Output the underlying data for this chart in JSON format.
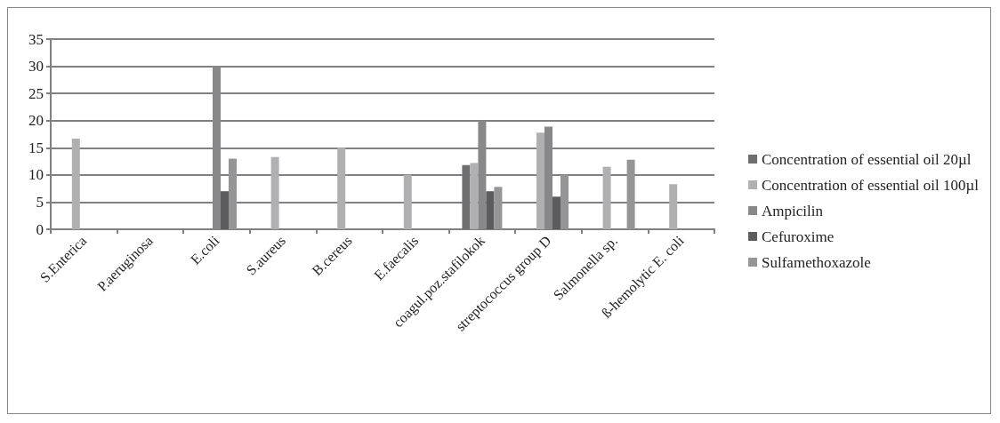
{
  "chart_data": {
    "type": "bar",
    "categories": [
      "S.Enterica",
      "P.aeruginosa",
      "E.coli",
      "S.aureus",
      "B.cereus",
      "E.faecalis",
      "coagul.poz.stafilokok",
      "streptococcus group D",
      "Salmonella sp.",
      "ß-hemolytic E. coli"
    ],
    "series": [
      {
        "name": "Concentration of essential oil 20µl",
        "color": "#6e6e70",
        "values": [
          null,
          null,
          null,
          null,
          null,
          null,
          11.8,
          null,
          null,
          null
        ]
      },
      {
        "name": "Concentration of essential oil 100µl",
        "color": "#b0b0b2",
        "values": [
          16.7,
          null,
          null,
          13.3,
          15,
          10,
          12.2,
          17.8,
          11.5,
          8.3
        ]
      },
      {
        "name": "Ampicilin",
        "color": "#88888a",
        "values": [
          null,
          null,
          30,
          null,
          null,
          null,
          20,
          18.9,
          null,
          null
        ]
      },
      {
        "name": "Cefuroxime",
        "color": "#5c5c5e",
        "values": [
          null,
          null,
          7,
          null,
          null,
          null,
          7,
          6,
          null,
          null
        ]
      },
      {
        "name": "Sulfamethoxazole",
        "color": "#959597",
        "values": [
          null,
          null,
          13,
          null,
          null,
          null,
          7.8,
          10,
          12.8,
          null
        ]
      }
    ],
    "ylim": [
      0,
      35
    ],
    "yticks": [
      0,
      5,
      10,
      15,
      20,
      25,
      30,
      35
    ],
    "grid": "y",
    "legend": "right"
  }
}
